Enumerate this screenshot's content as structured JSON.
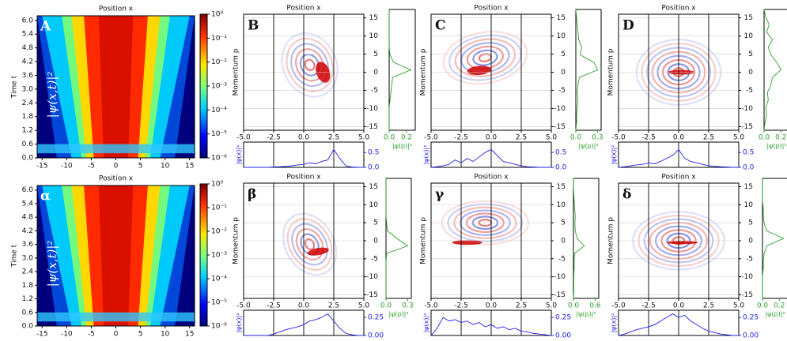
{
  "chart_data": [
    {
      "type": "heatmap",
      "label": "A",
      "title": "Position x",
      "ylabel": "Time t",
      "colorbar_label": "|ψ(x,t)|²",
      "xlim": [
        -16,
        16
      ],
      "xticks": [
        -15,
        -10,
        -5,
        0,
        5,
        10,
        15
      ],
      "ylim": [
        0,
        6.2
      ],
      "yticks": [
        {
          "value": 0,
          "label": "0.0"
        },
        0.6,
        1.2,
        1.8,
        2.4,
        {
          "value": 3,
          "label": "3.0"
        },
        3.6,
        4.2,
        4.8,
        5.4,
        {
          "value": 6,
          "label": "6.0"
        }
      ],
      "colorbar": {
        "log": true,
        "lim": [
          1e-06,
          1
        ],
        "ticks": [
          {
            "value": 1,
            "label": "10⁰"
          },
          {
            "value": 0.1,
            "label": "10⁻¹"
          },
          {
            "value": 0.01,
            "label": "10⁻²"
          },
          {
            "value": 0.001,
            "label": "10⁻³"
          },
          {
            "value": 0.0001,
            "label": "10⁻⁴"
          },
          {
            "value": 1e-05,
            "label": "10⁻⁵"
          },
          {
            "value": 1e-06,
            "label": "10⁻⁶"
          }
        ]
      }
    },
    {
      "type": "wigner",
      "label": "B",
      "title": "Position x",
      "ylabel": "Momentum p",
      "xlim": [
        -5,
        5
      ],
      "xticks": [
        {
          "value": -5,
          "label": "-5.0"
        },
        -2.5,
        {
          "value": 0,
          "label": "0.0"
        },
        2.5,
        {
          "value": 5,
          "label": "5.0"
        }
      ],
      "ylim": [
        -16,
        16
      ],
      "yticks": [
        -15,
        -10,
        -5,
        0,
        5,
        10,
        15
      ],
      "p_marginal": {
        "label": "|ψ(p)|²",
        "color": "#2ca02c",
        "xlim": [
          0,
          0.3
        ],
        "xticks": [
          {
            "value": 0,
            "label": "0.0"
          },
          0.2
        ],
        "p": [
          -16,
          -14,
          -12,
          -10,
          -8,
          -6,
          -4,
          -2,
          0,
          2,
          4,
          6,
          8,
          10,
          12,
          14,
          16
        ],
        "values": [
          0,
          0,
          0,
          0,
          0.01,
          0.02,
          0.03,
          0.04,
          0.25,
          0.05,
          0.01,
          0,
          0,
          0,
          0,
          0,
          0
        ]
      },
      "x_marginal": {
        "label": "|ψ(x)|²",
        "color": "#2222ee",
        "ylim": [
          0,
          0.85
        ],
        "yticks": [
          {
            "value": 0,
            "label": "0.0"
          },
          0.5
        ],
        "x": [
          -5,
          -4.5,
          -4,
          -3.5,
          -3,
          -2.5,
          -2,
          -1.5,
          -1,
          -0.5,
          0,
          0.5,
          1,
          1.5,
          2,
          2.5,
          3,
          3.5,
          4,
          4.5,
          5
        ],
        "values": [
          0,
          0,
          0,
          0,
          0,
          0.01,
          0.02,
          0.03,
          0.05,
          0.08,
          0.1,
          0.15,
          0.12,
          0.2,
          0.25,
          0.6,
          0.3,
          0.05,
          0.01,
          0,
          0
        ]
      }
    },
    {
      "type": "wigner",
      "label": "C",
      "title": "Position x",
      "ylabel": "Momentum p",
      "xlim": [
        -5,
        5
      ],
      "xticks": [
        {
          "value": -5,
          "label": "-5.0"
        },
        -2.5,
        {
          "value": 0,
          "label": "0.0"
        },
        2.5,
        {
          "value": 5,
          "label": "5.0"
        }
      ],
      "ylim": [
        -16,
        16
      ],
      "yticks": [
        -15,
        -10,
        -5,
        0,
        5,
        10,
        15
      ],
      "p_marginal": {
        "label": "|ψ(p)|²",
        "color": "#2ca02c",
        "xlim": [
          0,
          0.35
        ],
        "xticks": [
          {
            "value": 0,
            "label": "0.0"
          },
          0.3
        ],
        "p": [
          -16,
          -14,
          -12,
          -10,
          -8,
          -6,
          -4,
          -2,
          0,
          2,
          4,
          6,
          8,
          10,
          12,
          14,
          16
        ],
        "values": [
          0,
          0.01,
          0.01,
          0.02,
          0.03,
          0.02,
          0.03,
          0.05,
          0.3,
          0.25,
          0.06,
          0.08,
          0.04,
          0.03,
          0.02,
          0.01,
          0
        ]
      },
      "x_marginal": {
        "label": "|ψ(x)|²",
        "color": "#2222ee",
        "ylim": [
          0,
          0.85
        ],
        "yticks": [
          {
            "value": 0,
            "label": "0.0"
          },
          0.5
        ],
        "x": [
          -5,
          -4.5,
          -4,
          -3.5,
          -3,
          -2.5,
          -2,
          -1.5,
          -1,
          -0.5,
          0,
          0.5,
          1,
          1.5,
          2,
          2.5,
          3,
          3.5,
          4,
          4.5,
          5
        ],
        "values": [
          0,
          0.02,
          0.05,
          0.1,
          0.25,
          0.15,
          0.3,
          0.2,
          0.35,
          0.5,
          0.6,
          0.4,
          0.2,
          0.15,
          0.1,
          0.05,
          0.02,
          0.01,
          0,
          0,
          0
        ]
      }
    },
    {
      "type": "wigner",
      "label": "D",
      "title": "Position x",
      "ylabel": "Momentum p",
      "xlim": [
        -5,
        5
      ],
      "xticks": [
        {
          "value": -5,
          "label": "-5.0"
        },
        -2.5,
        {
          "value": 0,
          "label": "0.0"
        },
        2.5,
        {
          "value": 5,
          "label": "5.0"
        }
      ],
      "ylim": [
        -16,
        16
      ],
      "yticks": [
        -15,
        -10,
        -5,
        0,
        5,
        10,
        15
      ],
      "p_marginal": {
        "label": "|ψ(p)|²",
        "color": "#2ca02c",
        "xlim": [
          0,
          0.3
        ],
        "xticks": [
          {
            "value": 0,
            "label": "0.0"
          },
          0.2
        ],
        "p": [
          -16,
          -14,
          -12,
          -10,
          -8,
          -6,
          -4,
          -2,
          0,
          2,
          4,
          6,
          8,
          10,
          12,
          14,
          16
        ],
        "values": [
          0,
          0.01,
          0.03,
          0.02,
          0.05,
          0.04,
          0.08,
          0.1,
          0.2,
          0.15,
          0.08,
          0.05,
          0.1,
          0.03,
          0.06,
          0.02,
          0
        ]
      },
      "x_marginal": {
        "label": "|ψ(x)|²",
        "color": "#2222ee",
        "ylim": [
          0,
          0.85
        ],
        "yticks": [
          {
            "value": 0,
            "label": "0.0"
          },
          0.5
        ],
        "x": [
          -5,
          -4.5,
          -4,
          -3.5,
          -3,
          -2.5,
          -2,
          -1.5,
          -1,
          -0.5,
          0,
          0.5,
          1,
          1.5,
          2,
          2.5,
          3,
          3.5,
          4,
          4.5,
          5
        ],
        "values": [
          0,
          0.02,
          0.05,
          0.08,
          0.1,
          0.15,
          0.12,
          0.2,
          0.3,
          0.4,
          0.6,
          0.3,
          0.2,
          0.15,
          0.1,
          0.05,
          0.03,
          0.02,
          0.01,
          0,
          0
        ]
      }
    },
    {
      "type": "heatmap",
      "label": "α",
      "title": "Position x",
      "ylabel": "Time t",
      "colorbar_label": "|ψ(x,t)|²",
      "xlim": [
        -16,
        16
      ],
      "xticks": [
        -15,
        -10,
        -5,
        0,
        5,
        10,
        15
      ],
      "ylim": [
        0,
        6.2
      ],
      "yticks": [
        {
          "value": 0,
          "label": "0.0"
        },
        0.6,
        1.2,
        1.8,
        2.4,
        {
          "value": 3,
          "label": "3.0"
        },
        3.6,
        4.2,
        4.8,
        5.4,
        {
          "value": 6,
          "label": "6.0"
        }
      ],
      "colorbar": {
        "log": true,
        "lim": [
          1e-06,
          1
        ],
        "ticks": [
          {
            "value": 1,
            "label": "10⁰"
          },
          {
            "value": 0.1,
            "label": "10⁻¹"
          },
          {
            "value": 0.01,
            "label": "10⁻²"
          },
          {
            "value": 0.001,
            "label": "10⁻³"
          },
          {
            "value": 0.0001,
            "label": "10⁻⁴"
          },
          {
            "value": 1e-05,
            "label": "10⁻⁵"
          },
          {
            "value": 1e-06,
            "label": "10⁻⁶"
          }
        ]
      }
    },
    {
      "type": "wigner",
      "label": "β",
      "title": "Position x",
      "ylabel": "Momentum p",
      "xlim": [
        -5,
        5
      ],
      "xticks": [
        {
          "value": -5,
          "label": "-5.0"
        },
        -2.5,
        {
          "value": 0,
          "label": "0.0"
        },
        2.5,
        {
          "value": 5,
          "label": "5.0"
        }
      ],
      "ylim": [
        -16,
        16
      ],
      "yticks": [
        -15,
        -10,
        -5,
        0,
        5,
        10,
        15
      ],
      "p_marginal": {
        "label": "|ψ(p)|²",
        "color": "#2ca02c",
        "xlim": [
          0,
          0.35
        ],
        "xticks": [
          {
            "value": 0,
            "label": "0.0"
          },
          0.3
        ],
        "p": [
          -16,
          -14,
          -12,
          -10,
          -8,
          -6,
          -4,
          -2,
          0,
          2,
          4,
          6,
          8,
          10,
          12,
          14,
          16
        ],
        "values": [
          0,
          0,
          0,
          0,
          0,
          0,
          0.01,
          0.3,
          0.15,
          0.02,
          0.01,
          0,
          0,
          0,
          0,
          0,
          0
        ]
      },
      "x_marginal": {
        "label": "|ψ(x)|²",
        "color": "#2222ee",
        "ylim": [
          0,
          0.35
        ],
        "yticks": [
          {
            "value": 0,
            "label": "0.00"
          },
          0.25
        ],
        "x": [
          -5,
          -4.5,
          -4,
          -3.5,
          -3,
          -2.5,
          -2,
          -1.5,
          -1,
          -0.5,
          0,
          0.5,
          1,
          1.5,
          2,
          2.5,
          3,
          3.5,
          4,
          4.5,
          5
        ],
        "values": [
          0,
          0,
          0,
          0,
          0,
          0.02,
          0.05,
          0.08,
          0.1,
          0.12,
          0.15,
          0.2,
          0.22,
          0.25,
          0.3,
          0.2,
          0.1,
          0.03,
          0.01,
          0,
          0
        ]
      }
    },
    {
      "type": "wigner",
      "label": "γ",
      "title": "Position x",
      "ylabel": "Momentum p",
      "xlim": [
        -5,
        5
      ],
      "xticks": [
        {
          "value": -5,
          "label": "-5.0"
        },
        -2.5,
        {
          "value": 0,
          "label": "0.0"
        },
        2.5,
        {
          "value": 5,
          "label": "5.0"
        }
      ],
      "ylim": [
        -16,
        16
      ],
      "yticks": [
        -15,
        -10,
        -5,
        0,
        5,
        10,
        15
      ],
      "p_marginal": {
        "label": "|ψ(p)|²",
        "color": "#2ca02c",
        "xlim": [
          0,
          0.7
        ],
        "xticks": [
          {
            "value": 0,
            "label": "0.0"
          },
          0.6
        ],
        "p": [
          -16,
          -14,
          -12,
          -10,
          -8,
          -6,
          -4,
          -2,
          0,
          2,
          4,
          6,
          8,
          10,
          12,
          14,
          16
        ],
        "values": [
          0,
          0.01,
          0.01,
          0.01,
          0.02,
          0.02,
          0.03,
          0.3,
          0.1,
          0.05,
          0.04,
          0.05,
          0.03,
          0.02,
          0.01,
          0,
          0
        ]
      },
      "x_marginal": {
        "label": "|ψ(x)|²",
        "color": "#2222ee",
        "ylim": [
          0,
          0.35
        ],
        "yticks": [
          {
            "value": 0,
            "label": "0.00"
          },
          0.25
        ],
        "x": [
          -5,
          -4.5,
          -4,
          -3.5,
          -3,
          -2.5,
          -2,
          -1.5,
          -1,
          -0.5,
          0,
          0.5,
          1,
          1.5,
          2,
          2.5,
          3,
          3.5,
          4,
          4.5,
          5
        ],
        "values": [
          0,
          0.1,
          0.25,
          0.2,
          0.22,
          0.18,
          0.2,
          0.15,
          0.18,
          0.12,
          0.15,
          0.1,
          0.12,
          0.08,
          0.1,
          0.06,
          0.05,
          0.03,
          0.02,
          0.01,
          0
        ]
      }
    },
    {
      "type": "wigner",
      "label": "δ",
      "title": "Position x",
      "ylabel": "Momentum p",
      "xlim": [
        -5,
        5
      ],
      "xticks": [
        {
          "value": -5,
          "label": "-5.0"
        },
        -2.5,
        {
          "value": 0,
          "label": "0.0"
        },
        2.5,
        {
          "value": 5,
          "label": "5.0"
        }
      ],
      "ylim": [
        -16,
        16
      ],
      "yticks": [
        -15,
        -10,
        -5,
        0,
        5,
        10,
        15
      ],
      "p_marginal": {
        "label": "|ψ(p)|²",
        "color": "#2ca02c",
        "xlim": [
          0,
          0.3
        ],
        "xticks": [
          {
            "value": 0,
            "label": "0.0"
          },
          0.2
        ],
        "p": [
          -16,
          -14,
          -12,
          -10,
          -8,
          -6,
          -4,
          -2,
          0,
          2,
          4,
          6,
          8,
          10,
          12,
          14,
          16
        ],
        "values": [
          0,
          0,
          0,
          0,
          0.01,
          0.01,
          0.02,
          0.05,
          0.25,
          0.05,
          0.02,
          0.01,
          0.01,
          0,
          0,
          0,
          0
        ]
      },
      "x_marginal": {
        "label": "|ψ(x)|²",
        "color": "#2222ee",
        "ylim": [
          0,
          0.35
        ],
        "yticks": [
          {
            "value": 0,
            "label": "0.00"
          },
          0.25
        ],
        "x": [
          -5,
          -4.5,
          -4,
          -3.5,
          -3,
          -2.5,
          -2,
          -1.5,
          -1,
          -0.5,
          0,
          0.5,
          1,
          1.5,
          2,
          2.5,
          3,
          3.5,
          4,
          4.5,
          5
        ],
        "values": [
          0,
          0.02,
          0.05,
          0.08,
          0.1,
          0.12,
          0.15,
          0.2,
          0.25,
          0.3,
          0.25,
          0.28,
          0.2,
          0.15,
          0.1,
          0.06,
          0.04,
          0.02,
          0.01,
          0,
          0
        ]
      }
    }
  ]
}
